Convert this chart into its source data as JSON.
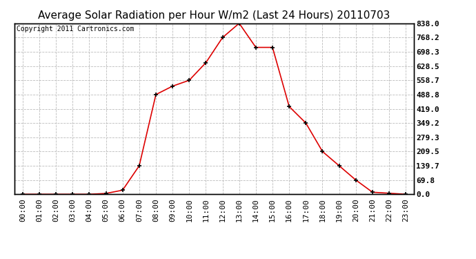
{
  "title": "Average Solar Radiation per Hour W/m2 (Last 24 Hours) 20110703",
  "copyright": "Copyright 2011 Cartronics.com",
  "x_labels": [
    "00:00",
    "01:00",
    "02:00",
    "03:00",
    "04:00",
    "05:00",
    "06:00",
    "07:00",
    "08:00",
    "09:00",
    "10:00",
    "11:00",
    "12:00",
    "13:00",
    "14:00",
    "15:00",
    "16:00",
    "17:00",
    "18:00",
    "19:00",
    "20:00",
    "21:00",
    "22:00",
    "23:00"
  ],
  "y_values": [
    0.0,
    0.0,
    0.0,
    0.0,
    0.0,
    4.0,
    20.0,
    139.7,
    488.8,
    530.0,
    558.7,
    645.0,
    768.2,
    838.0,
    720.0,
    720.0,
    430.0,
    349.2,
    209.5,
    139.7,
    69.8,
    10.0,
    5.0,
    0.0
  ],
  "line_color": "#dd0000",
  "marker": "+",
  "marker_color": "#000000",
  "marker_size": 5,
  "marker_linewidth": 1.2,
  "line_width": 1.2,
  "background_color": "#ffffff",
  "plot_bg_color": "#ffffff",
  "grid_color": "#bbbbbb",
  "grid_linestyle": "--",
  "y_tick_values": [
    0.0,
    69.8,
    139.7,
    209.5,
    279.3,
    349.2,
    419.0,
    488.8,
    558.7,
    628.5,
    698.3,
    768.2,
    838.0
  ],
  "y_min": 0.0,
  "y_max": 838.0,
  "title_fontsize": 11,
  "tick_fontsize": 8,
  "copyright_fontsize": 7,
  "border_color": "#000000"
}
